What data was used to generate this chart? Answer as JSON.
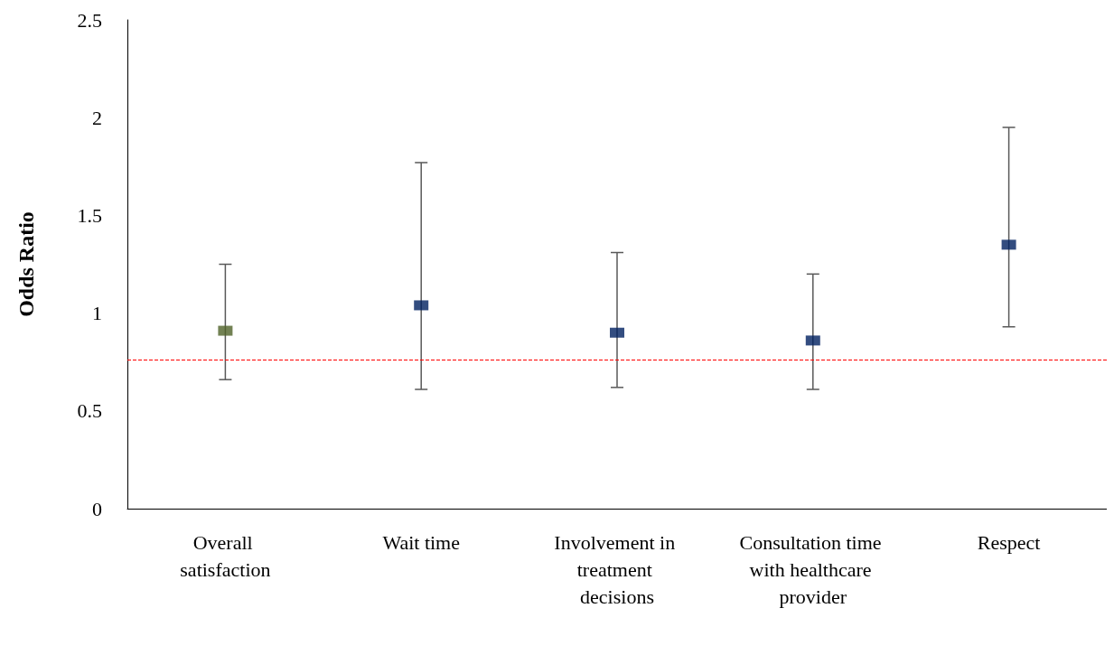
{
  "chart_data": {
    "type": "scatter",
    "ylabel": "Odds Ratio",
    "categories": [
      "Overall satisfaction",
      "Wait time",
      "Involvement in treatment decisions",
      "Consultation time with healthcare provider",
      "Respect"
    ],
    "values": [
      0.91,
      1.04,
      0.9,
      0.86,
      1.35
    ],
    "colors": [
      "#4f6228",
      "#002060",
      "#002060",
      "#002060",
      "#002060"
    ],
    "errors": [
      [
        0.66,
        1.25
      ],
      [
        0.61,
        1.77
      ],
      [
        0.62,
        1.31
      ],
      [
        0.61,
        1.2
      ],
      [
        0.93,
        1.95
      ]
    ],
    "ylim": [
      0,
      2.5
    ],
    "yticks": [
      0,
      0.5,
      1,
      1.5,
      2,
      2.5
    ],
    "ref_lines": [
      {
        "axis": "y",
        "value": 0.76,
        "color": "#ff0000",
        "line_style": "dashed"
      }
    ],
    "marker": "square",
    "grid": false
  }
}
